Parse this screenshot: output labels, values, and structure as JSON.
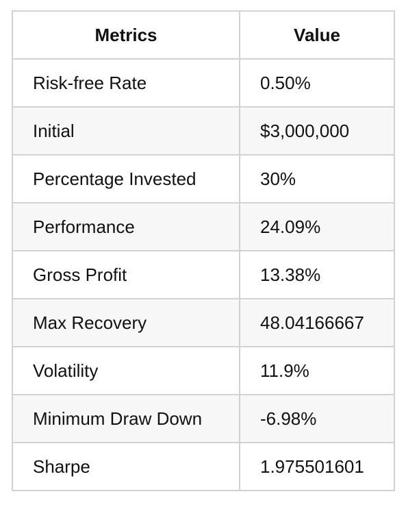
{
  "table": {
    "headers": [
      "Metrics",
      "Value"
    ],
    "rows": [
      {
        "metric": "Risk-free Rate",
        "value": "0.50%"
      },
      {
        "metric": "Initial",
        "value": "$3,000,000"
      },
      {
        "metric": "Percentage Invested",
        "value": "30%"
      },
      {
        "metric": "Performance",
        "value": "24.09%"
      },
      {
        "metric": "Gross Profit",
        "value": "13.38%"
      },
      {
        "metric": "Max Recovery",
        "value": "48.04166667"
      },
      {
        "metric": "Volatility",
        "value": "11.9%"
      },
      {
        "metric": "Minimum Draw Down",
        "value": "-6.98%"
      },
      {
        "metric": "Sharpe",
        "value": "1.975501601"
      }
    ]
  },
  "colors": {
    "border": "#d2d2d2",
    "row_stripe": "#f7f7f7",
    "text": "#111111",
    "background": "#ffffff"
  }
}
